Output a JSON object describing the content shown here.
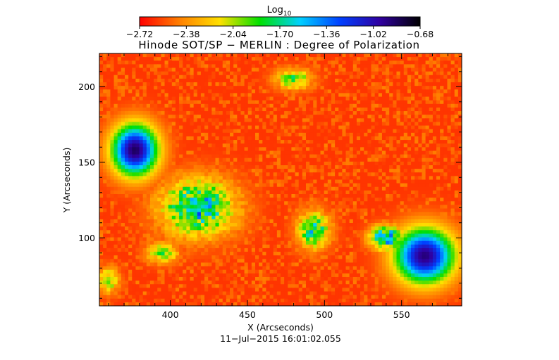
{
  "colorbar": {
    "title_base": "Log",
    "title_sub": "10",
    "ticks": [
      "−2.72",
      "−2.38",
      "−2.04",
      "−1.70",
      "−1.36",
      "−1.02",
      "−0.68"
    ],
    "range": [
      -2.72,
      -0.68
    ],
    "colors": [
      "#ff0000",
      "#ff8000",
      "#ffe000",
      "#00e000",
      "#00d0ff",
      "#0040ff",
      "#3000a0",
      "#000000"
    ]
  },
  "title": "Hinode SOT/SP − MERLIN : Degree of Polarization",
  "timestamp": "11−Jul−2015 16:01:02.055",
  "chart_data": {
    "type": "heatmap",
    "title": "Hinode SOT/SP − MERLIN : Degree of Polarization",
    "xlabel": "X (Arcseconds)",
    "ylabel": "Y (Arcseconds)",
    "xlim": [
      354,
      589
    ],
    "ylim": [
      55,
      222
    ],
    "xticks": [
      400,
      450,
      500,
      550
    ],
    "xtick_labels": [
      "400",
      "450",
      "500",
      "550"
    ],
    "yticks": [
      100,
      150,
      200
    ],
    "ytick_labels": [
      "100",
      "150",
      "200"
    ],
    "value_scale": "log10",
    "value_range": [
      -2.72,
      -0.68
    ],
    "background_level": -2.6,
    "features": [
      {
        "kind": "sunspot",
        "x": 377,
        "y": 158,
        "rx": 14,
        "ry": 16,
        "peak": -0.85
      },
      {
        "kind": "sunspot",
        "x": 565,
        "y": 88,
        "rx": 18,
        "ry": 17,
        "peak": -0.9
      },
      {
        "kind": "plage",
        "x": 418,
        "y": 120,
        "rx": 28,
        "ry": 22,
        "peak": -1.45
      },
      {
        "kind": "plage",
        "x": 493,
        "y": 105,
        "rx": 12,
        "ry": 14,
        "peak": -1.6
      },
      {
        "kind": "plage",
        "x": 540,
        "y": 100,
        "rx": 12,
        "ry": 9,
        "peak": -1.3
      },
      {
        "kind": "network",
        "x": 480,
        "y": 205,
        "rx": 14,
        "ry": 8,
        "peak": -1.85
      },
      {
        "kind": "network",
        "x": 395,
        "y": 90,
        "rx": 12,
        "ry": 8,
        "peak": -1.9
      },
      {
        "kind": "network",
        "x": 360,
        "y": 72,
        "rx": 8,
        "ry": 10,
        "peak": -1.9
      }
    ]
  }
}
